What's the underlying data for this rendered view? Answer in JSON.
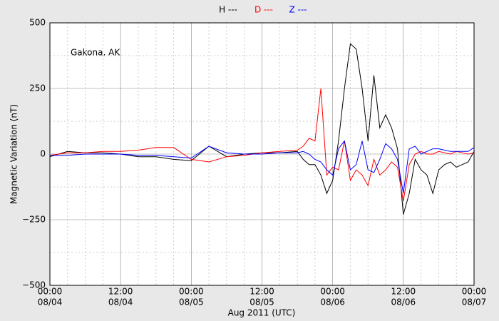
{
  "chart_data": {
    "type": "line",
    "annotation": "Gakona, AK",
    "xlabel": "Aug 2011 (UTC)",
    "ylabel": "Magnetic Variation (nT)",
    "x": [
      "2011-08-04T00:00",
      "2011-08-04T03:00",
      "2011-08-04T06:00",
      "2011-08-04T09:00",
      "2011-08-04T12:00",
      "2011-08-04T15:00",
      "2011-08-04T18:00",
      "2011-08-04T21:00",
      "2011-08-05T00:00",
      "2011-08-05T03:00",
      "2011-08-05T06:00",
      "2011-08-05T09:00",
      "2011-08-05T12:00",
      "2011-08-05T15:00",
      "2011-08-05T18:00",
      "2011-08-05T19:00",
      "2011-08-05T20:00",
      "2011-08-05T21:00",
      "2011-08-05T22:00",
      "2011-08-05T23:00",
      "2011-08-06T00:00",
      "2011-08-06T01:00",
      "2011-08-06T02:00",
      "2011-08-06T03:00",
      "2011-08-06T04:00",
      "2011-08-06T05:00",
      "2011-08-06T06:00",
      "2011-08-06T07:00",
      "2011-08-06T08:00",
      "2011-08-06T09:00",
      "2011-08-06T10:00",
      "2011-08-06T11:00",
      "2011-08-06T12:00",
      "2011-08-06T13:00",
      "2011-08-06T14:00",
      "2011-08-06T15:00",
      "2011-08-06T16:00",
      "2011-08-06T17:00",
      "2011-08-06T18:00",
      "2011-08-06T19:00",
      "2011-08-06T20:00",
      "2011-08-06T21:00",
      "2011-08-06T22:00",
      "2011-08-06T23:00",
      "2011-08-07T00:00"
    ],
    "series": [
      {
        "name": "H ---",
        "color": "#000000",
        "values": [
          -10,
          10,
          5,
          5,
          0,
          -10,
          -10,
          -20,
          -25,
          30,
          -10,
          0,
          5,
          5,
          10,
          -20,
          -40,
          -40,
          -80,
          -150,
          -100,
          50,
          250,
          420,
          400,
          250,
          50,
          300,
          100,
          150,
          100,
          20,
          -230,
          -150,
          -20,
          -60,
          -80,
          -150,
          -60,
          -40,
          -30,
          -50,
          -40,
          -30,
          10
        ]
      },
      {
        "name": "D ---",
        "color": "#ff0000",
        "values": [
          -5,
          5,
          5,
          10,
          10,
          15,
          25,
          25,
          -20,
          -30,
          -10,
          -5,
          5,
          10,
          15,
          30,
          60,
          50,
          250,
          -80,
          -50,
          -60,
          50,
          -100,
          -60,
          -80,
          -120,
          -20,
          -80,
          -60,
          -30,
          -50,
          -180,
          -40,
          0,
          10,
          0,
          0,
          10,
          5,
          0,
          10,
          5,
          0,
          5
        ]
      },
      {
        "name": "Z ---",
        "color": "#0000ff",
        "values": [
          -5,
          -5,
          0,
          0,
          0,
          -5,
          -5,
          -10,
          -15,
          30,
          5,
          0,
          0,
          5,
          5,
          10,
          0,
          -20,
          -30,
          -60,
          -80,
          20,
          50,
          -60,
          -40,
          50,
          -60,
          -70,
          -20,
          40,
          20,
          -20,
          -150,
          20,
          30,
          0,
          10,
          20,
          20,
          15,
          10,
          10,
          10,
          10,
          25
        ]
      }
    ],
    "xlim": [
      "2011-08-04T00:00",
      "2011-08-07T00:00"
    ],
    "xticks": [
      {
        "value": "2011-08-04T00:00",
        "label": [
          "00:00",
          "08/04"
        ]
      },
      {
        "value": "2011-08-04T12:00",
        "label": [
          "12:00",
          "08/04"
        ]
      },
      {
        "value": "2011-08-05T00:00",
        "label": [
          "00:00",
          "08/05"
        ]
      },
      {
        "value": "2011-08-05T12:00",
        "label": [
          "12:00",
          "08/05"
        ]
      },
      {
        "value": "2011-08-06T00:00",
        "label": [
          "00:00",
          "08/06"
        ]
      },
      {
        "value": "2011-08-06T12:00",
        "label": [
          "12:00",
          "08/06"
        ]
      },
      {
        "value": "2011-08-07T00:00",
        "label": [
          "00:00",
          "08/07"
        ]
      }
    ],
    "xminorticks": [
      "2011-08-04T03:00",
      "2011-08-04T06:00",
      "2011-08-04T09:00",
      "2011-08-04T15:00",
      "2011-08-04T18:00",
      "2011-08-04T21:00",
      "2011-08-05T03:00",
      "2011-08-05T06:00",
      "2011-08-05T09:00",
      "2011-08-05T15:00",
      "2011-08-05T18:00",
      "2011-08-05T21:00",
      "2011-08-06T03:00",
      "2011-08-06T06:00",
      "2011-08-06T09:00",
      "2011-08-06T15:00",
      "2011-08-06T18:00",
      "2011-08-06T21:00"
    ],
    "ylim": [
      -500,
      500
    ],
    "yticks": [
      500,
      250,
      0,
      {
        "value": -250,
        "label": "−250"
      },
      {
        "value": -500,
        "label": "−500"
      }
    ],
    "yminorticks": [
      375,
      125,
      -125,
      -375
    ],
    "grid": true
  }
}
